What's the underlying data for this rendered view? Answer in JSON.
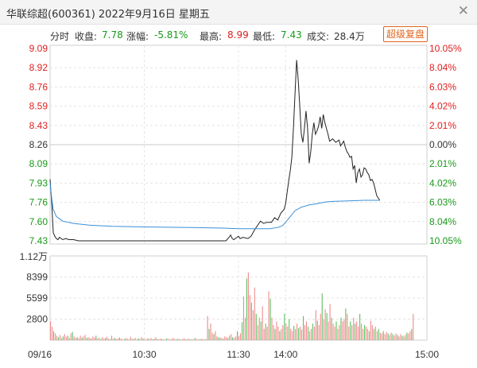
{
  "window": {
    "title": "华联综超(600361) 2022年9月16日 星期五",
    "close_glyph": "✕"
  },
  "info": {
    "mode": "分时",
    "close_label": "收盘:",
    "close_value": "7.78",
    "change_label": "涨幅:",
    "change_value": "-5.81%",
    "high_label": "最高:",
    "high_value": "8.99",
    "low_label": "最低:",
    "low_value": "7.43",
    "volume_label": "成交:",
    "volume_value": "28.4万",
    "restore_button": "超级复盘"
  },
  "colors": {
    "up": "#e02020",
    "down": "#1a9a1a",
    "price_line": "#222222",
    "avg_line": "#3a8fd6",
    "grid": "#e4e4e4",
    "vol_up": "#f08a8a",
    "vol_down": "#5fbf5f"
  },
  "chart_data": [
    {
      "type": "line",
      "title": "",
      "price_ticks": [
        "9.09",
        "8.92",
        "8.76",
        "8.59",
        "8.43",
        "8.26",
        "8.09",
        "7.93",
        "7.76",
        "7.60",
        "7.43"
      ],
      "pct_ticks": [
        "10.05%",
        "8.04%",
        "6.03%",
        "4.02%",
        "2.01%",
        "0.00%",
        "2.01%",
        "4.02%",
        "6.03%",
        "8.04%",
        "10.05%"
      ],
      "ylim": [
        7.43,
        9.09
      ],
      "prev_close": 8.26,
      "x_ticks": [
        "09/16",
        "10:30",
        "11:30",
        "14:00",
        "15:00"
      ],
      "x_minutes": [
        0,
        60,
        120,
        150,
        240
      ],
      "series": [
        {
          "role": "price",
          "points": [
            [
              0,
              7.96
            ],
            [
              1,
              7.76
            ],
            [
              2,
              7.5
            ],
            [
              3,
              7.47
            ],
            [
              4,
              7.45
            ],
            [
              5,
              7.44
            ],
            [
              6,
              7.46
            ],
            [
              8,
              7.44
            ],
            [
              10,
              7.45
            ],
            [
              12,
              7.44
            ],
            [
              15,
              7.44
            ],
            [
              18,
              7.43
            ],
            [
              25,
              7.43
            ],
            [
              35,
              7.43
            ],
            [
              50,
              7.43
            ],
            [
              70,
              7.43
            ],
            [
              90,
              7.43
            ],
            [
              105,
              7.43
            ],
            [
              112,
              7.43
            ],
            [
              114,
              7.46
            ],
            [
              115,
              7.48
            ],
            [
              116,
              7.45
            ],
            [
              117,
              7.44
            ],
            [
              119,
              7.46
            ],
            [
              120,
              7.47
            ],
            [
              121,
              7.45
            ],
            [
              123,
              7.46
            ],
            [
              126,
              7.45
            ],
            [
              128,
              7.47
            ],
            [
              130,
              7.52
            ],
            [
              132,
              7.56
            ],
            [
              134,
              7.6
            ],
            [
              136,
              7.58
            ],
            [
              138,
              7.59
            ],
            [
              141,
              7.59
            ],
            [
              143,
              7.63
            ],
            [
              145,
              7.61
            ],
            [
              147,
              7.67
            ],
            [
              149,
              7.7
            ],
            [
              150,
              7.75
            ],
            [
              151,
              7.85
            ],
            [
              152,
              7.95
            ],
            [
              153,
              8.04
            ],
            [
              154,
              8.15
            ],
            [
              155,
              8.4
            ],
            [
              156,
              8.7
            ],
            [
              157,
              8.99
            ],
            [
              158,
              8.82
            ],
            [
              159,
              8.6
            ],
            [
              160,
              8.35
            ],
            [
              161,
              8.28
            ],
            [
              162,
              8.4
            ],
            [
              163,
              8.55
            ],
            [
              164,
              8.4
            ],
            [
              165,
              8.1
            ],
            [
              166,
              8.2
            ],
            [
              167,
              8.35
            ],
            [
              168,
              8.45
            ],
            [
              169,
              8.35
            ],
            [
              170,
              8.38
            ],
            [
              171,
              8.42
            ],
            [
              172,
              8.5
            ],
            [
              173,
              8.4
            ],
            [
              174,
              8.52
            ],
            [
              175,
              8.45
            ],
            [
              176,
              8.4
            ],
            [
              177,
              8.35
            ],
            [
              178,
              8.29
            ],
            [
              180,
              8.31
            ],
            [
              182,
              8.28
            ],
            [
              184,
              8.3
            ],
            [
              185,
              8.25
            ],
            [
              187,
              8.29
            ],
            [
              188,
              8.24
            ],
            [
              189,
              8.2
            ],
            [
              190,
              8.18
            ],
            [
              191,
              8.15
            ],
            [
              192,
              8.16
            ],
            [
              193,
              8.05
            ],
            [
              194,
              8.08
            ],
            [
              195,
              7.93
            ],
            [
              196,
              8.02
            ],
            [
              197,
              8.05
            ],
            [
              198,
              7.98
            ],
            [
              199,
              8.0
            ],
            [
              200,
              8.06
            ],
            [
              201,
              8.05
            ],
            [
              202,
              8.02
            ],
            [
              203,
              8.0
            ],
            [
              204,
              7.95
            ],
            [
              205,
              7.96
            ],
            [
              206,
              7.93
            ],
            [
              207,
              7.88
            ],
            [
              208,
              7.82
            ],
            [
              209,
              7.8
            ],
            [
              210,
              7.78
            ]
          ]
        },
        {
          "role": "average",
          "points": [
            [
              0,
              7.93
            ],
            [
              1,
              7.8
            ],
            [
              2,
              7.7
            ],
            [
              4,
              7.64
            ],
            [
              8,
              7.6
            ],
            [
              15,
              7.58
            ],
            [
              25,
              7.565
            ],
            [
              40,
              7.555
            ],
            [
              60,
              7.55
            ],
            [
              90,
              7.545
            ],
            [
              110,
              7.54
            ],
            [
              120,
              7.535
            ],
            [
              140,
              7.535
            ],
            [
              145,
              7.545
            ],
            [
              148,
              7.56
            ],
            [
              150,
              7.59
            ],
            [
              153,
              7.64
            ],
            [
              156,
              7.69
            ],
            [
              160,
              7.72
            ],
            [
              165,
              7.74
            ],
            [
              170,
              7.75
            ],
            [
              175,
              7.765
            ],
            [
              180,
              7.77
            ],
            [
              190,
              7.775
            ],
            [
              200,
              7.78
            ],
            [
              210,
              7.78
            ]
          ]
        }
      ]
    },
    {
      "type": "bar",
      "title": "",
      "y_ticks": [
        "1.12万",
        "8399",
        "5599",
        "2800"
      ],
      "ylim": [
        0,
        11200
      ],
      "x_minutes_start": 0,
      "values": [
        2500,
        1800,
        1200,
        900,
        600,
        400,
        700,
        300,
        500,
        800,
        450,
        600,
        300,
        900,
        1100,
        500,
        300,
        400,
        250,
        600,
        350,
        500,
        700,
        300,
        400,
        300,
        200,
        500,
        350,
        600,
        250,
        300,
        150,
        400,
        200,
        300,
        450,
        200,
        150,
        600,
        200,
        300,
        150,
        250,
        350,
        200,
        100,
        150,
        300,
        200,
        100,
        450,
        200,
        150,
        300,
        100,
        250,
        150,
        400,
        200,
        150,
        100,
        250,
        150,
        300,
        120,
        200,
        400,
        150,
        120,
        200,
        150,
        100,
        100,
        250,
        150,
        100,
        120,
        300,
        150,
        100,
        200,
        150,
        100,
        120,
        250,
        100,
        150,
        200,
        100,
        150,
        100,
        300,
        150,
        100,
        120,
        200,
        150,
        100,
        150,
        3200,
        1500,
        2200,
        1000,
        800,
        1200,
        500,
        400,
        350,
        300,
        200,
        500,
        400,
        300,
        600,
        800,
        400,
        300,
        500,
        1200,
        600,
        900,
        2400,
        5800,
        3000,
        8200,
        9000,
        6000,
        5000,
        4000,
        7000,
        3500,
        2000,
        3000,
        2500,
        4500,
        1500,
        2200,
        1800,
        6500,
        5500,
        3000,
        2000,
        1500,
        2500,
        1800,
        1200,
        1500,
        2000,
        3500,
        2200,
        1800,
        2800,
        1500,
        1200,
        1900,
        1500,
        2200,
        1600,
        1800,
        1400,
        3200,
        2000,
        2500,
        1800,
        1200,
        1500,
        2200,
        1800,
        4000,
        2600,
        2000,
        3500,
        6200,
        2800,
        4100,
        3600,
        2500,
        4800,
        3000,
        2200,
        1800,
        2500,
        1500,
        2000,
        3000,
        2500,
        2800,
        4200,
        3500,
        1800,
        2500,
        2000,
        3000,
        2200,
        2500,
        1800,
        3500,
        2200,
        1500,
        2000,
        1800,
        1500,
        1200,
        2600,
        2000,
        1500,
        1800,
        1200,
        1500,
        1000,
        900,
        1200,
        800,
        1100,
        900,
        700,
        1000,
        800,
        600,
        900,
        700,
        500,
        800,
        600,
        500,
        700,
        1000,
        900,
        1200,
        1500,
        3500
      ]
    }
  ]
}
